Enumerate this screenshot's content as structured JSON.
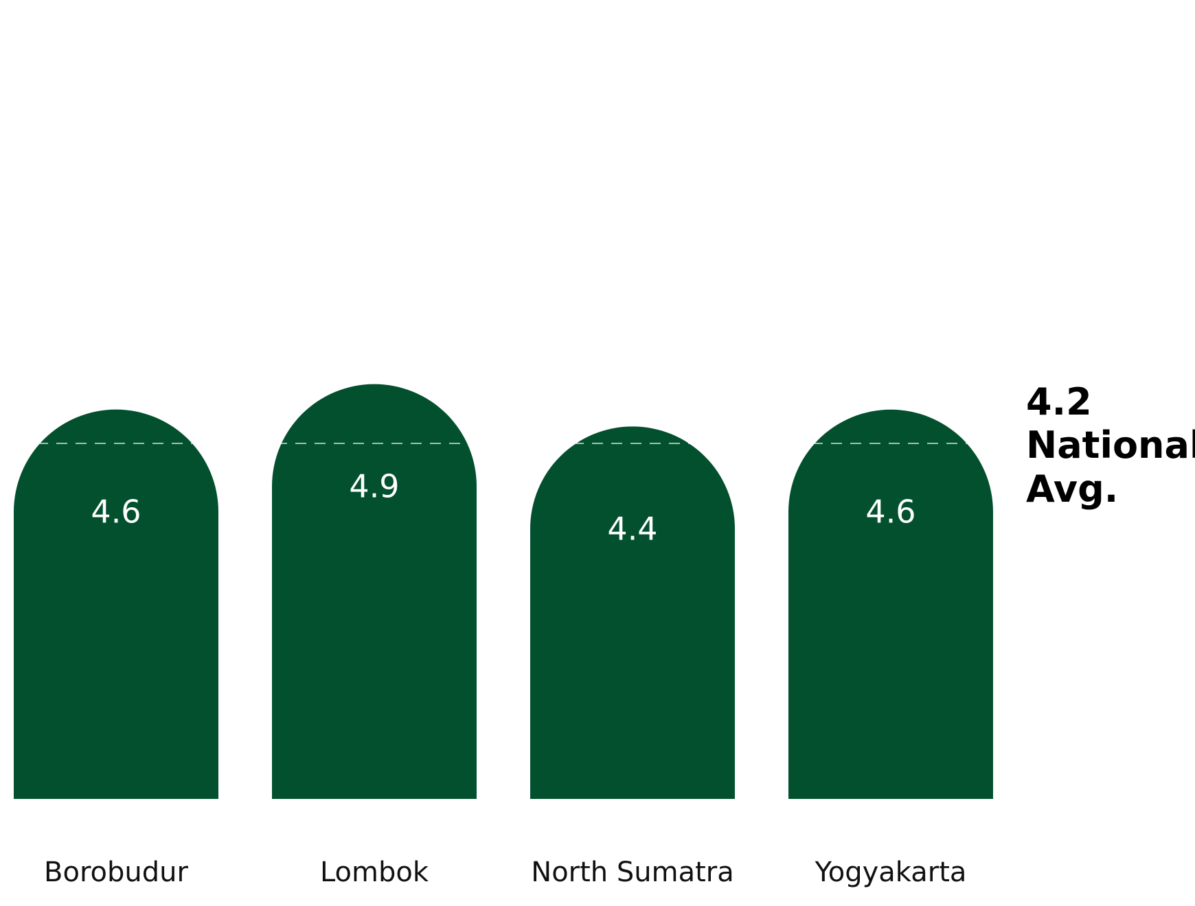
{
  "chart_data": {
    "type": "bar",
    "categories": [
      "Borobudur",
      "Lombok",
      "North Sumatra",
      "Yogyakarta"
    ],
    "values": [
      4.6,
      4.9,
      4.4,
      4.6
    ],
    "value_labels": [
      "4.6",
      "4.9",
      "4.4",
      "4.6"
    ],
    "reference_line": {
      "value": 4.2,
      "label_lines": [
        "4.2",
        "National",
        "Avg."
      ],
      "style": "dashed"
    },
    "bar_color": "#03502f",
    "reference_line_color": "#ffffff",
    "title": "",
    "xlabel": "",
    "ylabel": "",
    "grid": false,
    "legend": "none"
  }
}
